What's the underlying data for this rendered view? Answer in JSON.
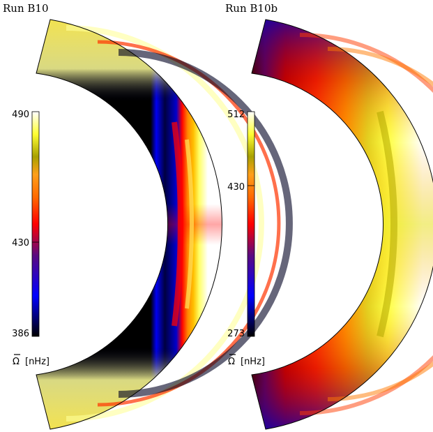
{
  "panels": [
    {
      "title": "Run B10",
      "colorbar": {
        "max": "490",
        "mid": "430",
        "min": "386"
      },
      "unit_symbol": "Ω",
      "unit_text": "[nHz]"
    },
    {
      "title": "Run B10b",
      "colorbar": {
        "max": "512",
        "mid": "430",
        "min": "273"
      },
      "unit_symbol": "Ω",
      "unit_text": "[nHz]"
    }
  ],
  "colormap": [
    "#000000",
    "#0000ff",
    "#ff0000",
    "#ff9900",
    "#b3a800",
    "#ffff33",
    "#ffffff"
  ]
}
